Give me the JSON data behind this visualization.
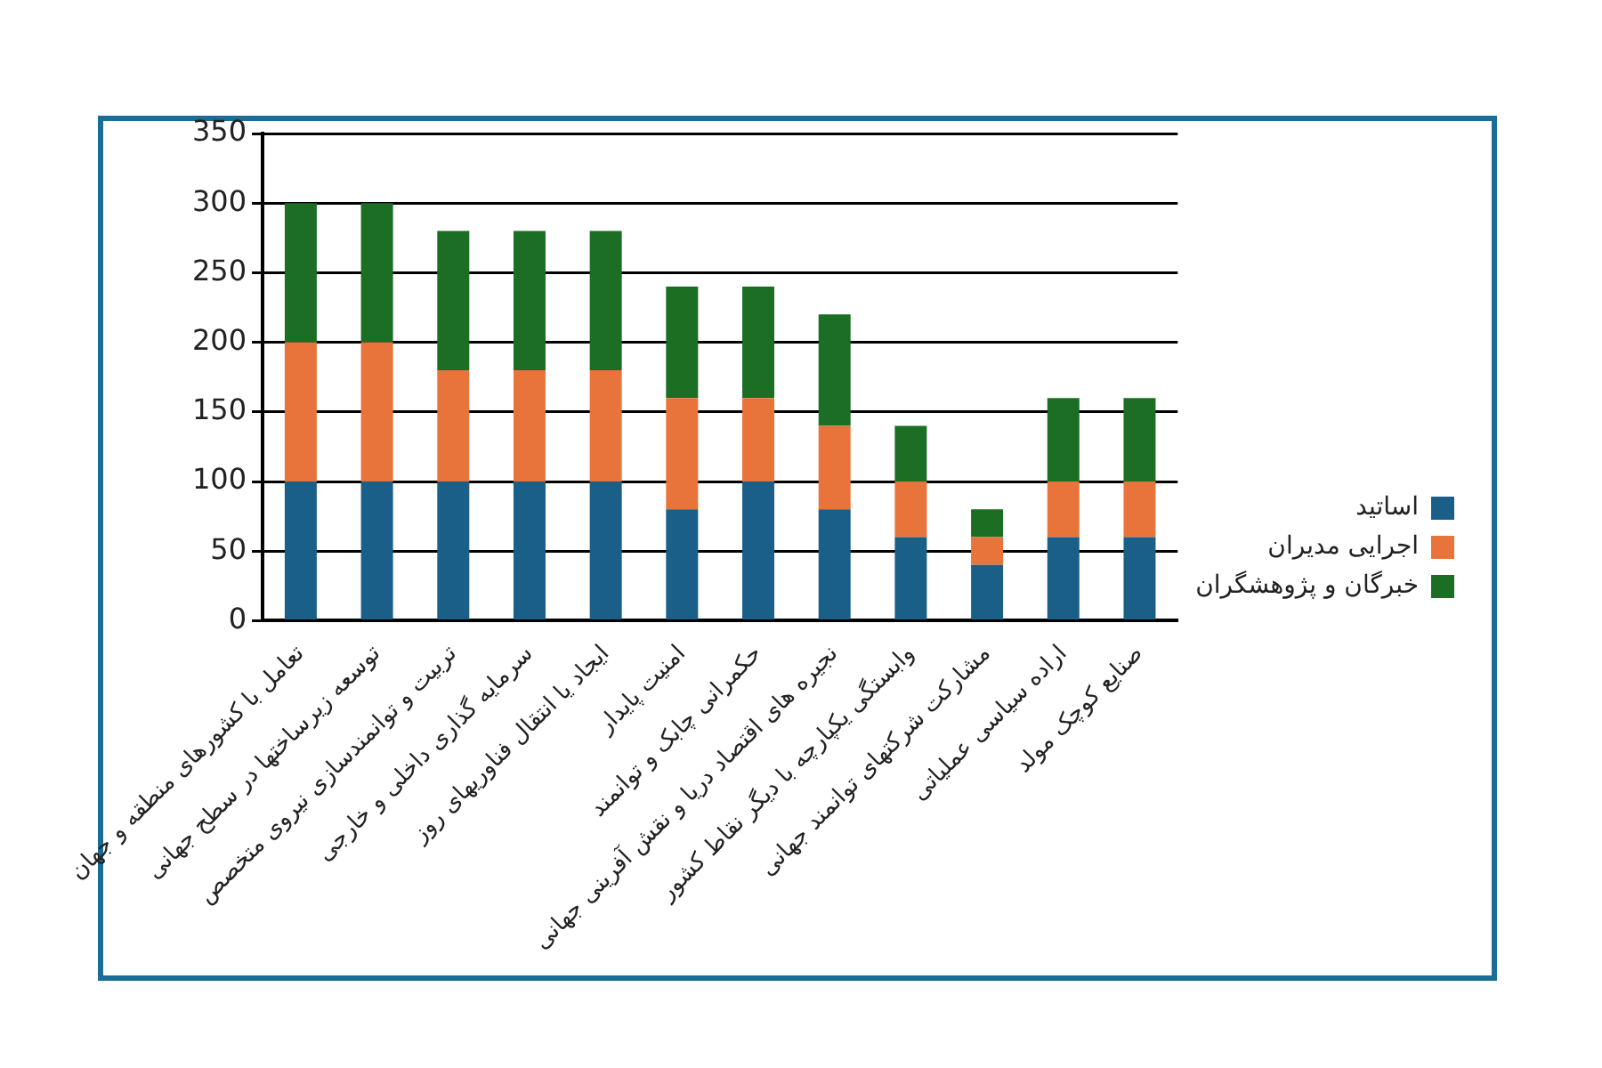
{
  "chart_data": {
    "type": "bar",
    "stacked": true,
    "categories": [
      "تعامل با کشورهای منطقه و جهان",
      "توسعه زیرساختها در سطح جهانی",
      "تربیت و توانمندسازی نیروی متخصص",
      "سرمایه گذاری داخلی و خارجی",
      "ایجاد یا انتقال فناوریهای روز",
      "امنیت پایدار",
      "حکمرانی چابک و توانمند",
      "نجیره های اقتصاد دریا و نقش آفرینی جهانی",
      "وابستگی یکپارچه با دیگر نقاط کشور",
      "مشارکت شرکتهای توانمند جهانی",
      "اراده سیاسی عملیاتی",
      "صنایع کوچک مولد"
    ],
    "series": [
      {
        "name": "اساتید",
        "color": "#1a5f87",
        "values": [
          100,
          100,
          100,
          100,
          100,
          80,
          100,
          80,
          60,
          40,
          60,
          60
        ]
      },
      {
        "name": "اجرایی مدیران",
        "color": "#e8743b",
        "values": [
          100,
          100,
          80,
          80,
          80,
          80,
          60,
          60,
          40,
          20,
          40,
          40
        ]
      },
      {
        "name": "خبرگان و پژوهشگران",
        "color": "#1b6e24",
        "values": [
          100,
          100,
          100,
          100,
          100,
          80,
          80,
          80,
          40,
          20,
          60,
          60
        ]
      }
    ],
    "ylim": [
      0,
      350
    ],
    "yticks": [
      0,
      50,
      100,
      150,
      200,
      250,
      300,
      350
    ],
    "grid": "y",
    "legend": "right"
  }
}
